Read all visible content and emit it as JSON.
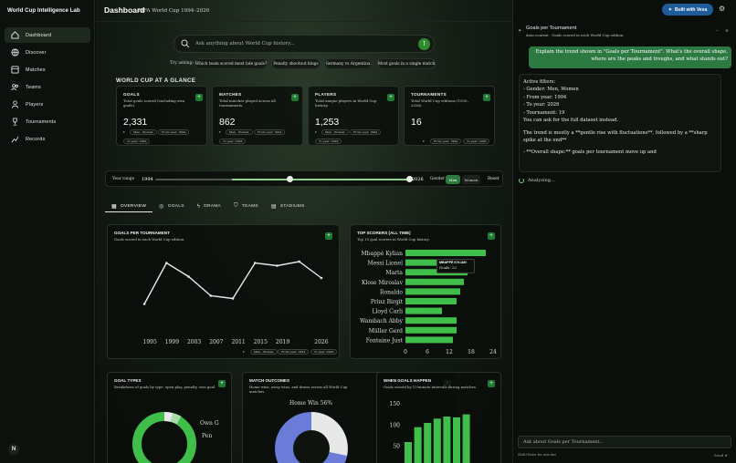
{
  "brand": {
    "title": "World Cup Intelligence Lab"
  },
  "nav": [
    {
      "label": "Dashboard",
      "icon": "home-icon"
    },
    {
      "label": "Discover",
      "icon": "globe-icon"
    },
    {
      "label": "Matches",
      "icon": "grid-icon"
    },
    {
      "label": "Teams",
      "icon": "users-icon"
    },
    {
      "label": "Players",
      "icon": "person-icon"
    },
    {
      "label": "Tournaments",
      "icon": "trophy-icon"
    },
    {
      "label": "Records",
      "icon": "chart-icon"
    }
  ],
  "sidebar_footer": {
    "avatar_letter": "N"
  },
  "header": {
    "title": "Dashboard",
    "subtitle": "FIFA World Cup 1994–2026"
  },
  "search": {
    "placeholder": "Ask anything about World Cup history..."
  },
  "suggestions": {
    "label": "Try asking:",
    "chips": [
      "Which team scored most late goals?",
      "Penalty shootout kings",
      "Germany vs Argentina",
      "Most goals in a single match"
    ]
  },
  "glance": {
    "title": "WORLD CUP AT A GLANCE",
    "cards": [
      {
        "label": "GOALS",
        "desc": "Total goals scored (excluding own goals).",
        "value": "2,331",
        "gender": "Men · Women",
        "from": "From year: 1994",
        "to": "To year: 2026"
      },
      {
        "label": "MATCHES",
        "desc": "Total matches played across all tournaments.",
        "value": "862",
        "gender": "Men · Women",
        "from": "From year: 1994",
        "to": "To year: 2026"
      },
      {
        "label": "PLAYERS",
        "desc": "Total unique players in World Cup history.",
        "value": "1,253",
        "gender": "Men · Women",
        "from": "From year: 1994",
        "to": "To year: 2026"
      },
      {
        "label": "TOURNAMENTS",
        "desc": "Total World Cup editions (1930–2026).",
        "value": "16",
        "from": "From year: 1994",
        "to": "To year: 2026"
      }
    ]
  },
  "year_range": {
    "label": "Year range",
    "from": "1994",
    "to": "2026",
    "from_fraction": 0.0,
    "to_fraction": 1.0,
    "gender_label": "Gender",
    "genders": [
      "Men",
      "Women"
    ],
    "reset": "Reset"
  },
  "tabs": [
    {
      "label": "OVERVIEW",
      "icon": "grid-icon"
    },
    {
      "label": "GOALS",
      "icon": "target-icon"
    },
    {
      "label": "DRAMA",
      "icon": "lightning-icon"
    },
    {
      "label": "TEAMS",
      "icon": "shield-icon"
    },
    {
      "label": "STADIUMS",
      "icon": "stadium-icon"
    }
  ],
  "goals_per_tournament": {
    "title": "GOALS PER TOURNAMENT",
    "desc": "Goals scored in each World Cup edition.",
    "gender": "Men · Women",
    "from": "From year: 1994",
    "to": "To year: 2026"
  },
  "top_scorers": {
    "title": "TOP SCORERS (ALL TIME)",
    "desc": "Top 10 goal scorers in World Cup history.",
    "tooltip_name": "MBAPPÉ KYLIAN",
    "tooltip_value": "Goals: 22"
  },
  "goal_types": {
    "title": "GOAL TYPES",
    "desc": "Breakdown of goals by type: open play, penalty, own goal.",
    "labels": [
      "Own G",
      "Pen"
    ]
  },
  "match_outcomes": {
    "title": "MATCH OUTCOMES",
    "desc": "Home wins, away wins, and draws across all World Cup matches.",
    "labels": [
      "Home Win 56%"
    ]
  },
  "when_goals": {
    "title": "WHEN GOALS HAPPEN",
    "desc": "Goals scored by 15-minute intervals during matches.",
    "y_ticks": [
      "150",
      "100",
      "50"
    ]
  },
  "chart_data": [
    {
      "type": "line",
      "title": "GOALS PER TOURNAMENT",
      "x": [
        1994,
        1998,
        2002,
        2006,
        2010,
        2014,
        2018,
        2022,
        2026
      ],
      "y": [
        141,
        171,
        161,
        147,
        145,
        171,
        169,
        172,
        160
      ],
      "xticks": [
        "1995",
        "1999",
        "2003",
        "2007",
        "2011",
        "2015",
        "2019",
        "2026"
      ]
    },
    {
      "type": "bar",
      "title": "TOP SCORERS (ALL TIME)",
      "categories": [
        "Mbappé Kylian",
        "Messi Lionel",
        "Marta",
        "Klose Miroslav",
        "Ronaldo",
        "Prinz Birgit",
        "Lloyd Carli",
        "Wambach Abby",
        "Müller Gerd",
        "Fontaine Just"
      ],
      "values": [
        22,
        17,
        17,
        16,
        15,
        14,
        10,
        14,
        14,
        13
      ],
      "xticks": [
        "0",
        "6",
        "12",
        "18",
        "24"
      ],
      "xlim": [
        0,
        24
      ]
    },
    {
      "type": "bar",
      "title": "WHEN GOALS HAPPEN",
      "values": [
        60,
        95,
        105,
        115,
        120,
        118,
        125
      ],
      "ylim": [
        0,
        150
      ]
    }
  ],
  "chat": {
    "title": "Goals per Tournament",
    "subtitle": "data-context · Goals scored in each World Cup edition.",
    "user_message": "Explain the trend shown in \"Goals per Tournament\". What's the overall shape, where are the peaks and troughs, and what stands out?",
    "assistant_lines": [
      "Active filters:",
      "- Gender: Men, Women",
      "- From year: 1994",
      "- To year: 2026",
      "- Tournament: 19",
      "You can ask for the full dataset instead.",
      "The trend is mostly a **gentle rise with fluctuations**, followed by a **sharp spike at the end**",
      "- **Overall shape:** goals per tournament move up and"
    ],
    "status": "Analyzing...",
    "input_placeholder": "Ask about Goals per Tournament...",
    "footer": "Shift+Enter for new line",
    "send": "Send"
  },
  "top_actions": {
    "vexa": "Built with Vexa"
  },
  "colors": {
    "accent": "#2e8b2e",
    "bar": "#3fbf4a",
    "line": "#e8e8e8",
    "pie": "#3fbf4a"
  }
}
